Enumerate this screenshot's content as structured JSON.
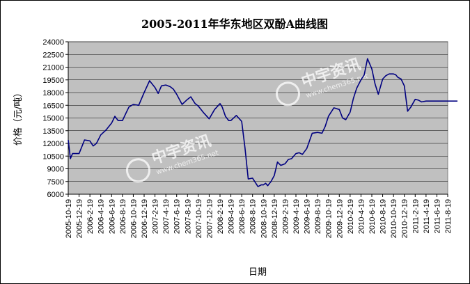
{
  "chart_data": {
    "type": "line",
    "title": "2005-2011年华东地区双酚A曲线图",
    "ylabel": "价格（元/吨）",
    "xlabel": "日期",
    "ylim": [
      6000,
      24000
    ],
    "yticks": [
      6000,
      7500,
      9000,
      10500,
      12000,
      13500,
      15000,
      16500,
      18000,
      19500,
      21000,
      22500,
      24000
    ],
    "xticks": [
      "2005-10-19",
      "2005-12-19",
      "2006-2-19",
      "2006-4-19",
      "2006-6-19",
      "2006-8-19",
      "2006-10-19",
      "2006-12-19",
      "2007-2-19",
      "2007-4-19",
      "2007-6-19",
      "2007-8-19",
      "2007-10-19",
      "2007-12-19",
      "2008-2-19",
      "2008-4-19",
      "2008-6-19",
      "2008-8-19",
      "2008-10-19",
      "2008-12-19",
      "2009-2-19",
      "2009-4-19",
      "2009-6-19",
      "2009-8-19",
      "2009-10-19",
      "2009-12-19",
      "2010-2-19",
      "2010-4-19",
      "2010-6-19",
      "2010-8-19",
      "2010-10-19",
      "2010-12-19",
      "2011-2-19",
      "2011-4-19",
      "2011-6-19",
      "2011-8-19"
    ],
    "grid": true,
    "background": "#c0c0c0",
    "line_color": "#000080",
    "series": [
      {
        "x": [
          0,
          0.2,
          0.4,
          1,
          1.5,
          2,
          2.3,
          2.6,
          3,
          3.5,
          4,
          4.3,
          4.6,
          5,
          5.3,
          5.6,
          6,
          6.5,
          7,
          7.5,
          8,
          8.3,
          8.6,
          9,
          9.4,
          9.7,
          10,
          10.5,
          11,
          11.3,
          11.7,
          12,
          12.5,
          13,
          13.5,
          14,
          14.2,
          14.5,
          14.8,
          15,
          15.5,
          16,
          16.3,
          16.6,
          17,
          17.5,
          17.8,
          18,
          18.2,
          18.4,
          18.7,
          19,
          19.3,
          19.6,
          20,
          20.3,
          20.6,
          21,
          21.3,
          21.6,
          22,
          22.5,
          23,
          23.4,
          23.7,
          24,
          24.5,
          25,
          25.3,
          25.6,
          26,
          26.3,
          26.6,
          27,
          27.3,
          27.6,
          28,
          28.3,
          28.6,
          29,
          29.3,
          29.6,
          30,
          30.2,
          30.4,
          30.7,
          31,
          31.3,
          31.6,
          32,
          32.3,
          32.6,
          33,
          33.3,
          33.6,
          34,
          34.3,
          34.6,
          34.8,
          35,
          35.3,
          35.6,
          35.9
        ],
        "y": [
          12400,
          10200,
          10800,
          10800,
          12400,
          12300,
          11700,
          12000,
          13000,
          13600,
          14400,
          15200,
          14700,
          14700,
          15500,
          16300,
          16600,
          16500,
          18000,
          19400,
          18600,
          17900,
          18800,
          18900,
          18700,
          18400,
          17800,
          16600,
          17200,
          17500,
          16700,
          16400,
          15600,
          14900,
          16000,
          16700,
          16300,
          15200,
          14700,
          14700,
          15300,
          14600,
          11500,
          7800,
          7900,
          6900,
          7100,
          7100,
          7300,
          7000,
          7500,
          8200,
          9800,
          9400,
          9600,
          10100,
          10200,
          10800,
          10900,
          10700,
          11400,
          13200,
          13300,
          13200,
          14000,
          15200,
          16200,
          16000,
          15000,
          14800,
          15700,
          17300,
          18500,
          19500,
          20100,
          22000,
          20800,
          19000,
          17800,
          19600,
          20000,
          20200,
          20200,
          20100,
          19800,
          19600,
          18800,
          15800,
          16300,
          17200,
          17100,
          16900,
          17000,
          17000,
          17000,
          17000,
          17000,
          17000,
          17000,
          17000,
          17000,
          17000,
          17000
        ]
      }
    ]
  },
  "watermarks": [
    {
      "text": "中宇资讯",
      "sub": "www.chem365.net"
    },
    {
      "text": "中宇资讯",
      "sub": "www.chem365.net"
    }
  ]
}
